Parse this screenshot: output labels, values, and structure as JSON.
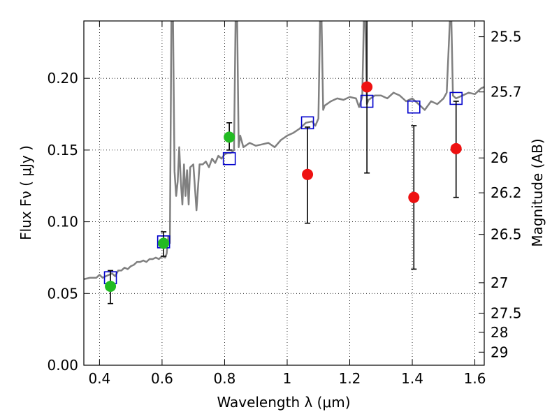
{
  "chart_data": {
    "type": "scatter",
    "xlabel": "Wavelength  λ (μm)",
    "ylabel": "Flux  Fν  ( μJy )",
    "ylabel_right": "Magnitude (AB)",
    "xlim": [
      0.35,
      1.63
    ],
    "ylim": [
      0.0,
      0.24
    ],
    "grid": true,
    "grid_style": "dotted",
    "x_ticks": [
      {
        "value": 0.4,
        "label": "0.4"
      },
      {
        "value": 0.6,
        "label": "0.6"
      },
      {
        "value": 0.8,
        "label": "0.8"
      },
      {
        "value": 1.0,
        "label": "1"
      },
      {
        "value": 1.2,
        "label": "1.2"
      },
      {
        "value": 1.4,
        "label": "1.4"
      },
      {
        "value": 1.6,
        "label": "1.6"
      }
    ],
    "y_ticks": [
      {
        "value": 0.0,
        "label": "0.00"
      },
      {
        "value": 0.05,
        "label": "0.05"
      },
      {
        "value": 0.1,
        "label": "0.10"
      },
      {
        "value": 0.15,
        "label": "0.15"
      },
      {
        "value": 0.2,
        "label": "0.20"
      }
    ],
    "y2_ticks": [
      {
        "flux": 0.229,
        "label": "25.5"
      },
      {
        "flux": 0.1905,
        "label": "25.7"
      },
      {
        "flux": 0.1445,
        "label": "26"
      },
      {
        "flux": 0.1202,
        "label": "26.2"
      },
      {
        "flux": 0.0912,
        "label": "26.5"
      },
      {
        "flux": 0.0575,
        "label": "27"
      },
      {
        "flux": 0.0363,
        "label": "27.5"
      },
      {
        "flux": 0.0229,
        "label": "28"
      },
      {
        "flux": 0.0091,
        "label": "29"
      }
    ],
    "series": [
      {
        "kind": "line",
        "color": "#808080",
        "points": [
          [
            0.35,
            0.06
          ],
          [
            0.37,
            0.061
          ],
          [
            0.39,
            0.061
          ],
          [
            0.4,
            0.063
          ],
          [
            0.41,
            0.061
          ],
          [
            0.42,
            0.062
          ],
          [
            0.43,
            0.063
          ],
          [
            0.44,
            0.064
          ],
          [
            0.45,
            0.062
          ],
          [
            0.46,
            0.066
          ],
          [
            0.47,
            0.066
          ],
          [
            0.48,
            0.068
          ],
          [
            0.49,
            0.067
          ],
          [
            0.5,
            0.069
          ],
          [
            0.51,
            0.07
          ],
          [
            0.52,
            0.072
          ],
          [
            0.53,
            0.072
          ],
          [
            0.54,
            0.073
          ],
          [
            0.55,
            0.072
          ],
          [
            0.56,
            0.074
          ],
          [
            0.57,
            0.074
          ],
          [
            0.58,
            0.075
          ],
          [
            0.59,
            0.074
          ],
          [
            0.6,
            0.076
          ],
          [
            0.61,
            0.075
          ],
          [
            0.615,
            0.078
          ],
          [
            0.62,
            0.09
          ],
          [
            0.625,
            0.085
          ],
          [
            0.63,
            0.24
          ],
          [
            0.635,
            0.24
          ],
          [
            0.64,
            0.135
          ],
          [
            0.645,
            0.118
          ],
          [
            0.65,
            0.128
          ],
          [
            0.655,
            0.152
          ],
          [
            0.66,
            0.128
          ],
          [
            0.665,
            0.112
          ],
          [
            0.67,
            0.14
          ],
          [
            0.675,
            0.118
          ],
          [
            0.68,
            0.136
          ],
          [
            0.685,
            0.112
          ],
          [
            0.69,
            0.138
          ],
          [
            0.7,
            0.14
          ],
          [
            0.71,
            0.108
          ],
          [
            0.72,
            0.14
          ],
          [
            0.73,
            0.14
          ],
          [
            0.74,
            0.142
          ],
          [
            0.75,
            0.138
          ],
          [
            0.76,
            0.144
          ],
          [
            0.77,
            0.141
          ],
          [
            0.78,
            0.146
          ],
          [
            0.79,
            0.144
          ],
          [
            0.8,
            0.147
          ],
          [
            0.81,
            0.148
          ],
          [
            0.82,
            0.148
          ],
          [
            0.83,
            0.15
          ],
          [
            0.835,
            0.24
          ],
          [
            0.84,
            0.24
          ],
          [
            0.845,
            0.152
          ],
          [
            0.85,
            0.16
          ],
          [
            0.86,
            0.152
          ],
          [
            0.88,
            0.155
          ],
          [
            0.9,
            0.153
          ],
          [
            0.92,
            0.154
          ],
          [
            0.94,
            0.155
          ],
          [
            0.96,
            0.152
          ],
          [
            0.98,
            0.157
          ],
          [
            1.0,
            0.16
          ],
          [
            1.02,
            0.162
          ],
          [
            1.04,
            0.165
          ],
          [
            1.06,
            0.169
          ],
          [
            1.08,
            0.17
          ],
          [
            1.09,
            0.167
          ],
          [
            1.1,
            0.172
          ],
          [
            1.105,
            0.24
          ],
          [
            1.11,
            0.24
          ],
          [
            1.115,
            0.178
          ],
          [
            1.12,
            0.181
          ],
          [
            1.14,
            0.184
          ],
          [
            1.16,
            0.186
          ],
          [
            1.18,
            0.185
          ],
          [
            1.2,
            0.187
          ],
          [
            1.22,
            0.186
          ],
          [
            1.23,
            0.18
          ],
          [
            1.24,
            0.187
          ],
          [
            1.245,
            0.24
          ],
          [
            1.25,
            0.24
          ],
          [
            1.255,
            0.182
          ],
          [
            1.26,
            0.185
          ],
          [
            1.28,
            0.188
          ],
          [
            1.3,
            0.188
          ],
          [
            1.32,
            0.186
          ],
          [
            1.34,
            0.19
          ],
          [
            1.36,
            0.188
          ],
          [
            1.38,
            0.184
          ],
          [
            1.4,
            0.186
          ],
          [
            1.42,
            0.182
          ],
          [
            1.44,
            0.178
          ],
          [
            1.46,
            0.184
          ],
          [
            1.48,
            0.182
          ],
          [
            1.5,
            0.186
          ],
          [
            1.51,
            0.19
          ],
          [
            1.52,
            0.24
          ],
          [
            1.525,
            0.24
          ],
          [
            1.53,
            0.188
          ],
          [
            1.54,
            0.186
          ],
          [
            1.56,
            0.188
          ],
          [
            1.58,
            0.19
          ],
          [
            1.6,
            0.189
          ],
          [
            1.62,
            0.193
          ],
          [
            1.63,
            0.194
          ]
        ]
      },
      {
        "kind": "squares",
        "color": "#0000cc",
        "points": [
          [
            0.435,
            0.061
          ],
          [
            0.605,
            0.086
          ],
          [
            0.815,
            0.144
          ],
          [
            1.065,
            0.169
          ],
          [
            1.255,
            0.184
          ],
          [
            1.405,
            0.18
          ],
          [
            1.54,
            0.186
          ]
        ]
      },
      {
        "kind": "dots",
        "color": "#22bb22",
        "points": [
          {
            "x": 0.435,
            "y": 0.055,
            "err_lo": 0.043,
            "err_hi": 0.066
          },
          {
            "x": 0.605,
            "y": 0.085,
            "err_lo": 0.076,
            "err_hi": 0.093
          },
          {
            "x": 0.815,
            "y": 0.159,
            "err_lo": 0.15,
            "err_hi": 0.169
          }
        ]
      },
      {
        "kind": "dots",
        "color": "#ee1111",
        "points": [
          {
            "x": 1.065,
            "y": 0.133,
            "err_lo": 0.099,
            "err_hi": 0.166
          },
          {
            "x": 1.255,
            "y": 0.194,
            "err_lo": 0.134,
            "err_hi": 0.24
          },
          {
            "x": 1.405,
            "y": 0.117,
            "err_lo": 0.067,
            "err_hi": 0.167
          },
          {
            "x": 1.54,
            "y": 0.151,
            "err_lo": 0.117,
            "err_hi": 0.184
          }
        ]
      }
    ]
  }
}
